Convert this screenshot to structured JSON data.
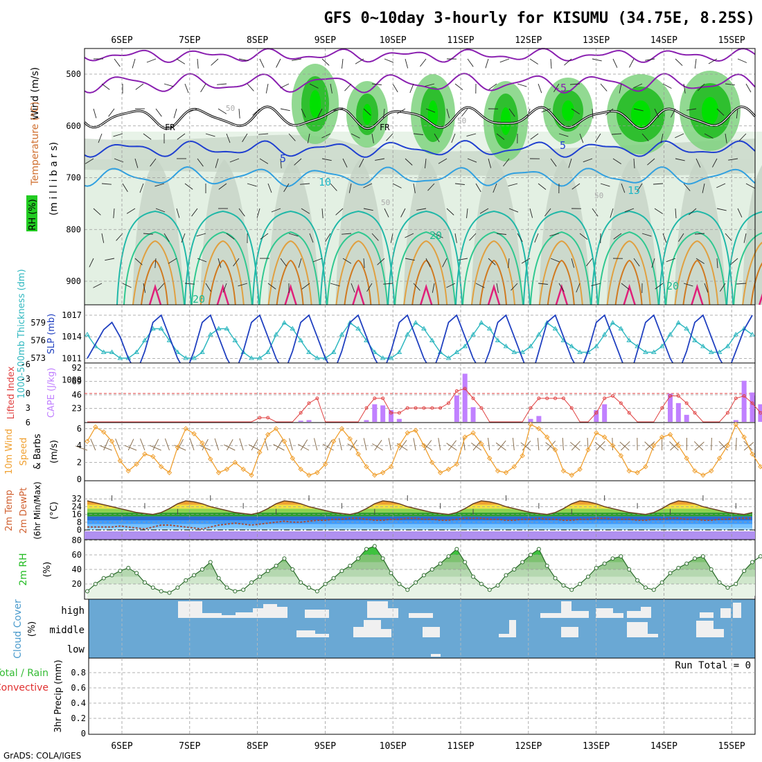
{
  "title": "GFS 0~10day 3-hourly for KISUMU (34.75E, 8.25S)",
  "footer": "GrADS: COLA/IGES",
  "dates": [
    "6SEP",
    "7SEP",
    "8SEP",
    "9SEP",
    "10SEP",
    "11SEP",
    "12SEP",
    "13SEP",
    "14SEP",
    "15SEP"
  ],
  "colors": {
    "rh": "#22cc22",
    "temp_label": "#e06030",
    "cape": "#c080ff",
    "lifted": "#e04040",
    "slp": "#2040c0",
    "thick": "#30b8c0",
    "wind10": "#f0a030",
    "cloud": "#6aa8d4",
    "rh2m": "#22bb22",
    "precip_total": "#33bb33",
    "precip_conv": "#e03030"
  },
  "panels": {
    "upper": {
      "label_wind": "Wind (m/s)",
      "label_temp": "Temperature (°C)",
      "label_rh": "RH (%)",
      "label_mb": "(m i l l i b a r s)",
      "yticks": [
        "500",
        "600",
        "700",
        "800",
        "900"
      ],
      "contour_labels": [
        "-5",
        "FR",
        "FR",
        "5",
        "5",
        "10",
        "15",
        "20",
        "20",
        "20",
        "50",
        "50",
        "50",
        "50"
      ]
    },
    "slp": {
      "label_thick": "1000-500mb Thickness (dm)",
      "label_slp": "SLP (mb)",
      "thick_ticks": [
        "579",
        "576",
        "573"
      ],
      "slp_ticks": [
        "1017",
        "1014",
        "1011",
        "1008"
      ]
    },
    "cape": {
      "label_li": "Lifted Index",
      "label_cape": "CAPE (J/kg)",
      "li_ticks": [
        "-6",
        "-3",
        "0",
        "3",
        "6"
      ],
      "cape_ticks": [
        "92",
        "69",
        "46",
        "23"
      ]
    },
    "wind10": {
      "label_a": "10m Wind",
      "label_b": "Speed",
      "label_c": "& Barbs",
      "unit": "(m/s)",
      "yticks": [
        "6",
        "4",
        "2",
        "0"
      ]
    },
    "temp2m": {
      "label_a": "2m Temp",
      "label_b": "2m DewPt",
      "label_c": "(6hr Min/Max)",
      "unit": "(°C)",
      "yticks": [
        "32",
        "24",
        "16",
        "8",
        "0"
      ]
    },
    "rh2m": {
      "label": "2m RH",
      "unit": "(%)",
      "yticks": [
        "80",
        "60",
        "40",
        "20"
      ]
    },
    "cloud": {
      "label": "Cloud Cover",
      "unit": "(%)",
      "levels": [
        "high",
        "middle",
        "low"
      ]
    },
    "precip": {
      "label_total": "Total / Rain",
      "label_conv": "Convective",
      "label_axis": "3hr Precip (mm)",
      "yticks": [
        "0.8",
        "0.6",
        "0.4",
        "0.2",
        "0"
      ],
      "run_total": "Run Total = 0"
    }
  },
  "chart_data": [
    {
      "type": "line",
      "name": "slp_thickness",
      "series": [
        {
          "name": "SLP (mb)",
          "values": [
            1011,
            1013,
            1015,
            1016,
            1014,
            1011,
            1009,
            1012,
            1016,
            1017,
            1014,
            1011,
            1009,
            1012,
            1016,
            1017,
            1014,
            1011,
            1009,
            1012,
            1016,
            1017,
            1014,
            1011,
            1009,
            1012,
            1016,
            1017,
            1014,
            1011,
            1009,
            1012,
            1016,
            1017,
            1014,
            1011,
            1009,
            1012,
            1016,
            1017,
            1014,
            1011,
            1009,
            1012,
            1016,
            1017,
            1014,
            1011,
            1009,
            1012,
            1016,
            1017,
            1014,
            1011,
            1008,
            1012,
            1016,
            1017,
            1014,
            1011,
            1009,
            1012,
            1016,
            1017,
            1014,
            1011,
            1008,
            1012,
            1016,
            1017,
            1014,
            1011,
            1009,
            1012,
            1016,
            1017,
            1014,
            1011,
            1009,
            1012,
            1015,
            1017
          ]
        },
        {
          "name": "1000-500mb Thickness (dm)",
          "values": [
            577,
            575,
            574,
            574,
            573,
            573,
            574,
            576,
            578,
            578,
            576,
            574,
            573,
            573,
            574,
            577,
            578,
            578,
            576,
            574,
            573,
            573,
            574,
            577,
            579,
            578,
            576,
            574,
            573,
            573,
            574,
            577,
            579,
            578,
            576,
            574,
            573,
            573,
            574,
            577,
            579,
            578,
            576,
            574,
            573,
            574,
            575,
            577,
            579,
            578,
            576,
            575,
            574,
            574,
            575,
            577,
            579,
            578,
            576,
            575,
            574,
            574,
            575,
            577,
            579,
            578,
            576,
            575,
            574,
            574,
            575,
            577,
            579,
            578,
            576,
            575,
            574,
            574,
            575,
            577,
            578,
            577
          ]
        }
      ]
    },
    {
      "type": "bar",
      "name": "cape_li",
      "ylim": [
        0,
        92
      ],
      "series": [
        {
          "name": "CAPE (J/kg)",
          "values": [
            0,
            0,
            0,
            0,
            0,
            0,
            0,
            0,
            0,
            0,
            0,
            0,
            0,
            0,
            0,
            0,
            0,
            0,
            0,
            0,
            0,
            0,
            0,
            0,
            0,
            0,
            2,
            3,
            0,
            0,
            0,
            0,
            0,
            0,
            3,
            30,
            28,
            20,
            5,
            0,
            0,
            0,
            0,
            0,
            0,
            45,
            82,
            25,
            0,
            0,
            0,
            0,
            0,
            0,
            5,
            10,
            0,
            0,
            0,
            0,
            0,
            0,
            20,
            30,
            0,
            0,
            0,
            0,
            0,
            0,
            0,
            48,
            32,
            12,
            0,
            0,
            0,
            0,
            0,
            3,
            70,
            50,
            30
          ]
        },
        {
          "name": "Lifted Index",
          "values": [
            6,
            6,
            6,
            6,
            6,
            6,
            6,
            6,
            6,
            6,
            6,
            6,
            6,
            6,
            6,
            6,
            6,
            6,
            6,
            6,
            6,
            5,
            5,
            6,
            6,
            6,
            4,
            2,
            1,
            6,
            6,
            6,
            6,
            6,
            3,
            1,
            1,
            4,
            4,
            3,
            3,
            3,
            3,
            3,
            2,
            -0.5,
            -1,
            1,
            3,
            6,
            6,
            6,
            6,
            6,
            3,
            1,
            1,
            1,
            1,
            3,
            6,
            6,
            4,
            1,
            0.5,
            2,
            4,
            6,
            6,
            6,
            3,
            0.5,
            0.5,
            2,
            4,
            6,
            6,
            6,
            4,
            1,
            0.5,
            2,
            4
          ]
        }
      ]
    },
    {
      "type": "line",
      "name": "wind10m",
      "ylim": [
        0,
        6.5
      ],
      "series": [
        {
          "name": "Speed (m/s)",
          "values": [
            4.5,
            6.2,
            5.6,
            4.5,
            2.2,
            1.0,
            1.8,
            3.0,
            2.7,
            1.5,
            0.8,
            3.8,
            6.0,
            5.4,
            4.3,
            2.4,
            0.8,
            1.2,
            2.0,
            1.2,
            0.5,
            3.2,
            5.3,
            6.0,
            4.5,
            2.5,
            1.2,
            0.5,
            0.8,
            1.8,
            4.5,
            6.0,
            4.8,
            3.0,
            1.5,
            0.5,
            0.8,
            1.5,
            4.0,
            5.5,
            5.8,
            4.0,
            2.0,
            0.8,
            1.2,
            1.8,
            5.0,
            5.5,
            4.2,
            2.5,
            1.0,
            0.8,
            1.5,
            2.8,
            6.5,
            6.0,
            5.0,
            3.5,
            1.0,
            0.5,
            1.2,
            3.5,
            5.5,
            5.0,
            4.0,
            2.8,
            1.0,
            0.8,
            1.5,
            4.0,
            5.0,
            5.3,
            4.0,
            2.5,
            1.0,
            0.5,
            1.0,
            2.5,
            4.0,
            6.5,
            5.0,
            3.0,
            1.5,
            0.8,
            1.5,
            1.8
          ]
        }
      ]
    },
    {
      "type": "area",
      "name": "temp2m",
      "ylim": [
        0,
        35
      ],
      "series": [
        {
          "name": "2m Temp",
          "values": [
            30,
            28,
            26,
            24,
            22,
            20,
            18,
            17,
            16,
            18,
            22,
            27,
            30,
            29,
            27,
            24,
            22,
            20,
            18,
            17,
            16,
            18,
            22,
            27,
            30,
            29,
            27,
            24,
            22,
            20,
            18,
            17,
            16,
            18,
            22,
            27,
            30,
            29,
            27,
            24,
            22,
            20,
            18,
            17,
            16,
            18,
            22,
            27,
            30,
            29,
            27,
            24,
            22,
            20,
            18,
            17,
            16,
            18,
            22,
            27,
            30,
            29,
            27,
            24,
            22,
            20,
            18,
            17,
            16,
            18,
            22,
            27,
            30,
            29,
            27,
            24,
            22,
            20,
            18,
            17,
            16,
            18
          ]
        },
        {
          "name": "2m DewPt",
          "values": [
            3,
            3,
            3,
            3,
            4,
            3,
            2,
            1,
            3,
            5,
            5,
            4,
            3,
            2,
            1,
            3,
            5,
            6,
            7,
            6,
            5,
            6,
            7,
            8,
            9,
            8,
            8,
            9,
            10,
            10,
            11,
            11,
            12,
            12,
            11,
            10,
            10,
            11,
            11,
            12,
            12,
            11,
            11,
            10,
            10,
            11,
            12,
            12,
            12,
            11,
            11,
            10,
            10,
            11,
            11,
            12,
            11,
            11,
            10,
            10,
            11,
            11,
            12,
            12,
            11,
            11,
            11,
            10,
            10,
            11,
            11,
            12,
            12,
            11,
            11,
            10,
            10,
            11,
            11,
            12,
            12,
            12
          ]
        }
      ]
    },
    {
      "type": "area",
      "name": "rh2m",
      "ylim": [
        0,
        80
      ],
      "series": [
        {
          "name": "2m RH",
          "values": [
            10,
            20,
            28,
            32,
            38,
            42,
            35,
            22,
            15,
            10,
            8,
            15,
            25,
            32,
            40,
            50,
            28,
            15,
            10,
            12,
            22,
            30,
            38,
            45,
            55,
            40,
            22,
            15,
            10,
            20,
            28,
            38,
            45,
            55,
            68,
            72,
            55,
            35,
            20,
            12,
            22,
            32,
            40,
            48,
            58,
            68,
            50,
            30,
            20,
            12,
            18,
            32,
            40,
            50,
            60,
            68,
            45,
            28,
            18,
            12,
            20,
            30,
            42,
            48,
            55,
            58,
            40,
            25,
            15,
            12,
            22,
            35,
            42,
            48,
            55,
            58,
            40,
            22,
            15,
            20,
            38,
            50,
            58,
            65,
            68,
            45
          ]
        }
      ]
    },
    {
      "type": "bar",
      "name": "precip3h",
      "ylim": [
        0,
        0.9
      ],
      "series": [
        {
          "name": "Total / Rain",
          "values": []
        },
        {
          "name": "Convective",
          "values": []
        }
      ]
    }
  ]
}
